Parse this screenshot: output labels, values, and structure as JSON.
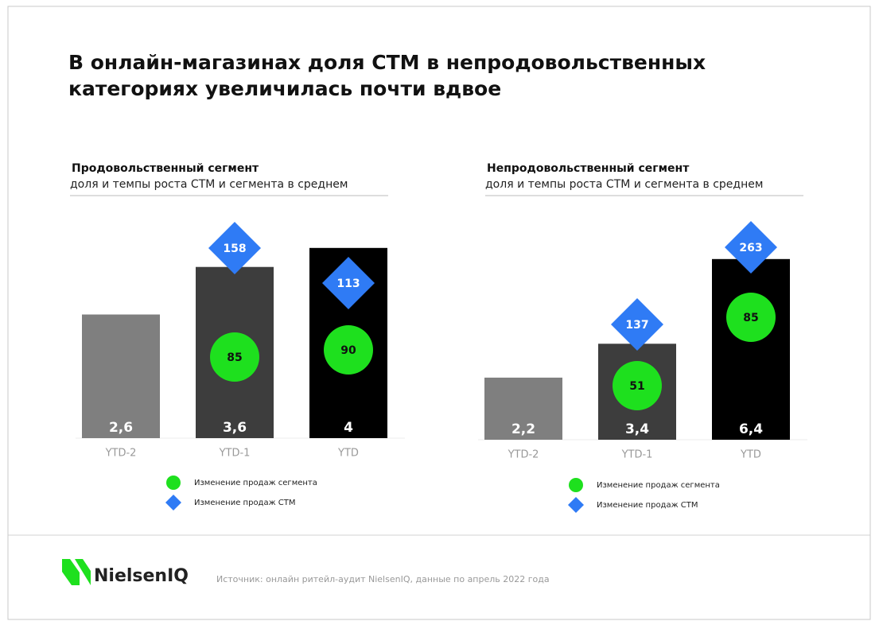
{
  "header": {
    "title": "В онлайн-магазинах доля СТМ в непродовольственных категориях увеличилась почти вдвое"
  },
  "chart_data": [
    {
      "type": "bar",
      "title": "Продовольственный сегмент",
      "subtitle": "доля и темпы роста СТМ и сегмента в среднем",
      "categories": [
        "YTD-2",
        "YTD-1",
        "YTD"
      ],
      "series": [
        {
          "colors": [
            "#7f7f7f",
            "#3d3d3d",
            "#000000"
          ],
          "values": [
            2.6,
            3.6,
            4
          ],
          "value_labels": [
            "2,6",
            "3,6",
            "4"
          ]
        },
        {
          "name": "Изменение продаж сегмента",
          "color": "#1ee01e",
          "marker": "circle",
          "values": [
            null,
            85,
            90
          ]
        },
        {
          "name": "Изменение продаж СТМ",
          "color": "#2f7bf5",
          "marker": "diamond",
          "values": [
            null,
            158,
            113
          ]
        }
      ]
    },
    {
      "type": "bar",
      "title": "Непродовольственный сегмент",
      "subtitle": "доля и темпы роста СТМ и сегмента в среднем",
      "categories": [
        "YTD-2",
        "YTD-1",
        "YTD"
      ],
      "series": [
        {
          "colors": [
            "#7f7f7f",
            "#3d3d3d",
            "#000000"
          ],
          "values": [
            2.2,
            3.4,
            6.4
          ],
          "value_labels": [
            "2,2",
            "3,4",
            "6,4"
          ]
        },
        {
          "name": "Изменение продаж сегмента",
          "color": "#1ee01e",
          "marker": "circle",
          "values": [
            null,
            51,
            85
          ]
        },
        {
          "name": "Изменение продаж СТМ",
          "color": "#2f7bf5",
          "marker": "diamond",
          "values": [
            null,
            137,
            263
          ]
        }
      ]
    }
  ],
  "footer": {
    "logo": "NielsenIQ",
    "source": "Источник: онлайн ритейл-аудит NielsenIQ, данные по апрель 2022 года"
  }
}
